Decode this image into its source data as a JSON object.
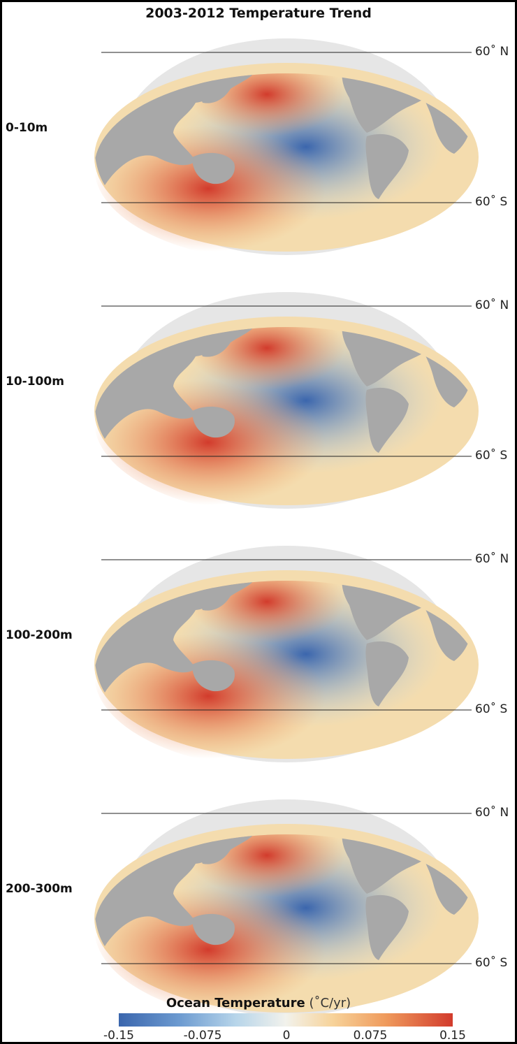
{
  "title": "2003-2012 Temperature Trend",
  "panels": [
    {
      "depth": "0-10m",
      "lat_north": "60˚ N",
      "lat_south": "60˚ S"
    },
    {
      "depth": "10-100m",
      "lat_north": "60˚ N",
      "lat_south": "60˚ S"
    },
    {
      "depth": "100-200m",
      "lat_north": "60˚ N",
      "lat_south": "60˚ S"
    },
    {
      "depth": "200-300m",
      "lat_north": "60˚ N",
      "lat_south": "60˚ S"
    }
  ],
  "legend": {
    "title": "Ocean Temperature",
    "unit": "(˚C/yr)",
    "ticks": [
      "-0.15",
      "-0.075",
      "0",
      "0.075",
      "0.15"
    ],
    "colors": {
      "min": "#3b66ad",
      "mid": "#f2f2ec",
      "max": "#d23b2c",
      "land": "#a8a8a8",
      "polar_land": "#e6e6e6"
    }
  }
}
